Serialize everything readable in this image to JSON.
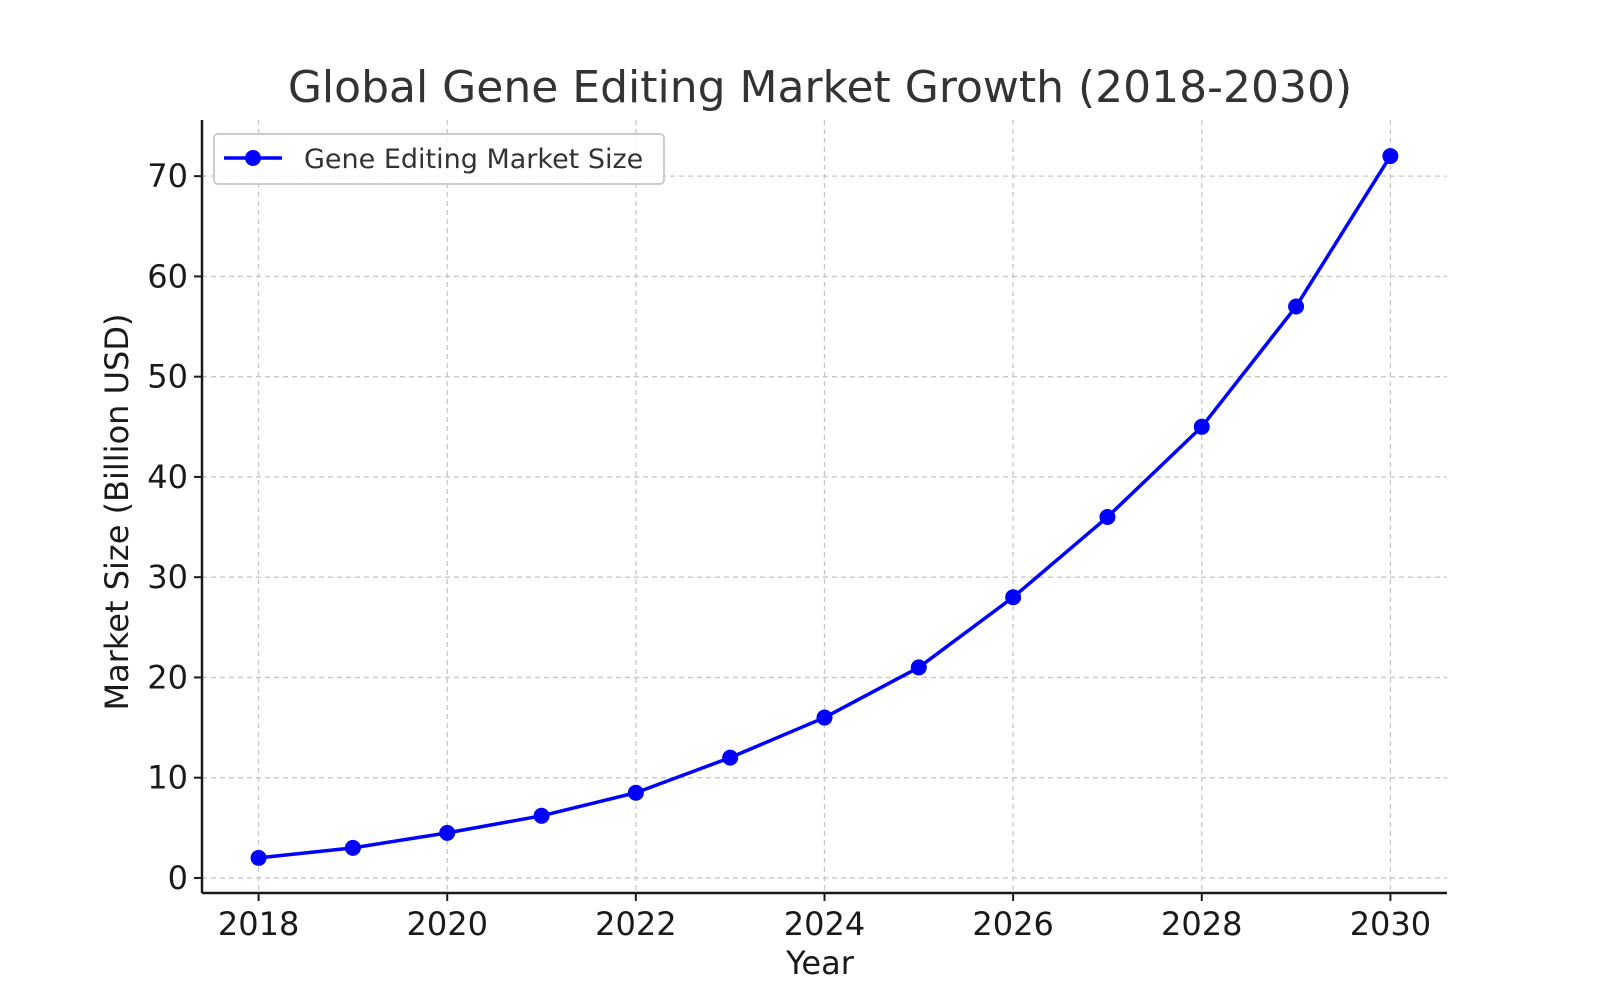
{
  "chart_data": {
    "type": "line",
    "title": "Global Gene Editing Market Growth (2018-2030)",
    "xlabel": "Year",
    "ylabel": "Market Size (Billion USD)",
    "x": [
      2018,
      2019,
      2020,
      2021,
      2022,
      2023,
      2024,
      2025,
      2026,
      2027,
      2028,
      2029,
      2030
    ],
    "series": [
      {
        "name": "Gene Editing Market Size",
        "color": "#0000ff",
        "marker": "circle",
        "values": [
          2.0,
          3.0,
          4.5,
          6.2,
          8.5,
          12.0,
          16.0,
          21.0,
          28.0,
          36.0,
          45.0,
          57.0,
          72.0
        ]
      }
    ],
    "xlim": [
      2017.4,
      2030.6
    ],
    "ylim": [
      -1.5,
      75.6
    ],
    "xticks": [
      2018,
      2020,
      2022,
      2024,
      2026,
      2028,
      2030
    ],
    "xtick_labels": [
      "2018",
      "2020",
      "2022",
      "2024",
      "2026",
      "2028",
      "2030"
    ],
    "yticks": [
      0,
      10,
      20,
      30,
      40,
      50,
      60,
      70
    ],
    "ytick_labels": [
      "0",
      "10",
      "20",
      "30",
      "40",
      "50",
      "60",
      "70"
    ],
    "grid": true,
    "grid_style": "dashed",
    "legend": "top-left"
  }
}
